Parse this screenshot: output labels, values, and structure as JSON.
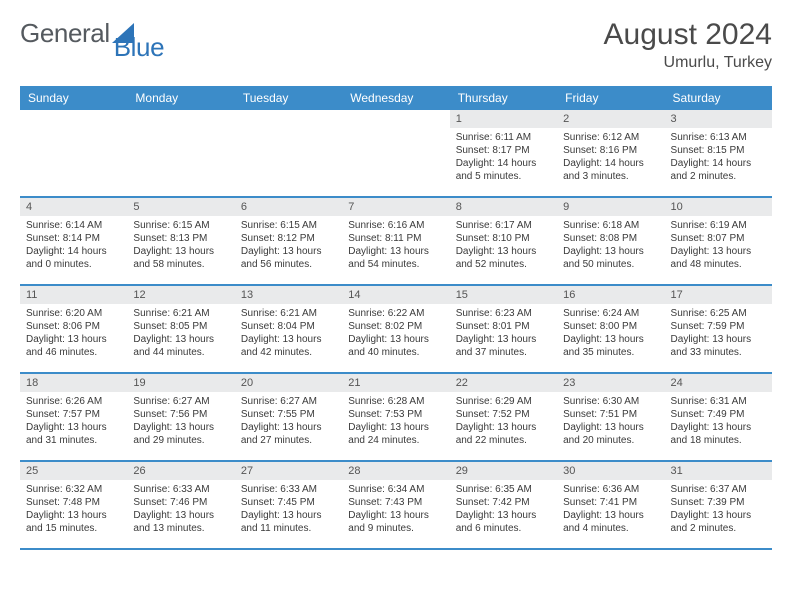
{
  "brand": {
    "word1": "General",
    "word2": "Blue"
  },
  "header": {
    "title": "August 2024",
    "location": "Umurlu, Turkey"
  },
  "calendar": {
    "day_names": [
      "Sunday",
      "Monday",
      "Tuesday",
      "Wednesday",
      "Thursday",
      "Friday",
      "Saturday"
    ],
    "colors": {
      "header_bg": "#3c8cc9",
      "daynum_bg": "#e9eaeb",
      "border": "#3c8cc9"
    },
    "weeks": [
      [
        {
          "empty": true
        },
        {
          "empty": true
        },
        {
          "empty": true
        },
        {
          "empty": true
        },
        {
          "num": "1",
          "sunrise": "Sunrise: 6:11 AM",
          "sunset": "Sunset: 8:17 PM",
          "daylight": "Daylight: 14 hours and 5 minutes."
        },
        {
          "num": "2",
          "sunrise": "Sunrise: 6:12 AM",
          "sunset": "Sunset: 8:16 PM",
          "daylight": "Daylight: 14 hours and 3 minutes."
        },
        {
          "num": "3",
          "sunrise": "Sunrise: 6:13 AM",
          "sunset": "Sunset: 8:15 PM",
          "daylight": "Daylight: 14 hours and 2 minutes."
        }
      ],
      [
        {
          "num": "4",
          "sunrise": "Sunrise: 6:14 AM",
          "sunset": "Sunset: 8:14 PM",
          "daylight": "Daylight: 14 hours and 0 minutes."
        },
        {
          "num": "5",
          "sunrise": "Sunrise: 6:15 AM",
          "sunset": "Sunset: 8:13 PM",
          "daylight": "Daylight: 13 hours and 58 minutes."
        },
        {
          "num": "6",
          "sunrise": "Sunrise: 6:15 AM",
          "sunset": "Sunset: 8:12 PM",
          "daylight": "Daylight: 13 hours and 56 minutes."
        },
        {
          "num": "7",
          "sunrise": "Sunrise: 6:16 AM",
          "sunset": "Sunset: 8:11 PM",
          "daylight": "Daylight: 13 hours and 54 minutes."
        },
        {
          "num": "8",
          "sunrise": "Sunrise: 6:17 AM",
          "sunset": "Sunset: 8:10 PM",
          "daylight": "Daylight: 13 hours and 52 minutes."
        },
        {
          "num": "9",
          "sunrise": "Sunrise: 6:18 AM",
          "sunset": "Sunset: 8:08 PM",
          "daylight": "Daylight: 13 hours and 50 minutes."
        },
        {
          "num": "10",
          "sunrise": "Sunrise: 6:19 AM",
          "sunset": "Sunset: 8:07 PM",
          "daylight": "Daylight: 13 hours and 48 minutes."
        }
      ],
      [
        {
          "num": "11",
          "sunrise": "Sunrise: 6:20 AM",
          "sunset": "Sunset: 8:06 PM",
          "daylight": "Daylight: 13 hours and 46 minutes."
        },
        {
          "num": "12",
          "sunrise": "Sunrise: 6:21 AM",
          "sunset": "Sunset: 8:05 PM",
          "daylight": "Daylight: 13 hours and 44 minutes."
        },
        {
          "num": "13",
          "sunrise": "Sunrise: 6:21 AM",
          "sunset": "Sunset: 8:04 PM",
          "daylight": "Daylight: 13 hours and 42 minutes."
        },
        {
          "num": "14",
          "sunrise": "Sunrise: 6:22 AM",
          "sunset": "Sunset: 8:02 PM",
          "daylight": "Daylight: 13 hours and 40 minutes."
        },
        {
          "num": "15",
          "sunrise": "Sunrise: 6:23 AM",
          "sunset": "Sunset: 8:01 PM",
          "daylight": "Daylight: 13 hours and 37 minutes."
        },
        {
          "num": "16",
          "sunrise": "Sunrise: 6:24 AM",
          "sunset": "Sunset: 8:00 PM",
          "daylight": "Daylight: 13 hours and 35 minutes."
        },
        {
          "num": "17",
          "sunrise": "Sunrise: 6:25 AM",
          "sunset": "Sunset: 7:59 PM",
          "daylight": "Daylight: 13 hours and 33 minutes."
        }
      ],
      [
        {
          "num": "18",
          "sunrise": "Sunrise: 6:26 AM",
          "sunset": "Sunset: 7:57 PM",
          "daylight": "Daylight: 13 hours and 31 minutes."
        },
        {
          "num": "19",
          "sunrise": "Sunrise: 6:27 AM",
          "sunset": "Sunset: 7:56 PM",
          "daylight": "Daylight: 13 hours and 29 minutes."
        },
        {
          "num": "20",
          "sunrise": "Sunrise: 6:27 AM",
          "sunset": "Sunset: 7:55 PM",
          "daylight": "Daylight: 13 hours and 27 minutes."
        },
        {
          "num": "21",
          "sunrise": "Sunrise: 6:28 AM",
          "sunset": "Sunset: 7:53 PM",
          "daylight": "Daylight: 13 hours and 24 minutes."
        },
        {
          "num": "22",
          "sunrise": "Sunrise: 6:29 AM",
          "sunset": "Sunset: 7:52 PM",
          "daylight": "Daylight: 13 hours and 22 minutes."
        },
        {
          "num": "23",
          "sunrise": "Sunrise: 6:30 AM",
          "sunset": "Sunset: 7:51 PM",
          "daylight": "Daylight: 13 hours and 20 minutes."
        },
        {
          "num": "24",
          "sunrise": "Sunrise: 6:31 AM",
          "sunset": "Sunset: 7:49 PM",
          "daylight": "Daylight: 13 hours and 18 minutes."
        }
      ],
      [
        {
          "num": "25",
          "sunrise": "Sunrise: 6:32 AM",
          "sunset": "Sunset: 7:48 PM",
          "daylight": "Daylight: 13 hours and 15 minutes."
        },
        {
          "num": "26",
          "sunrise": "Sunrise: 6:33 AM",
          "sunset": "Sunset: 7:46 PM",
          "daylight": "Daylight: 13 hours and 13 minutes."
        },
        {
          "num": "27",
          "sunrise": "Sunrise: 6:33 AM",
          "sunset": "Sunset: 7:45 PM",
          "daylight": "Daylight: 13 hours and 11 minutes."
        },
        {
          "num": "28",
          "sunrise": "Sunrise: 6:34 AM",
          "sunset": "Sunset: 7:43 PM",
          "daylight": "Daylight: 13 hours and 9 minutes."
        },
        {
          "num": "29",
          "sunrise": "Sunrise: 6:35 AM",
          "sunset": "Sunset: 7:42 PM",
          "daylight": "Daylight: 13 hours and 6 minutes."
        },
        {
          "num": "30",
          "sunrise": "Sunrise: 6:36 AM",
          "sunset": "Sunset: 7:41 PM",
          "daylight": "Daylight: 13 hours and 4 minutes."
        },
        {
          "num": "31",
          "sunrise": "Sunrise: 6:37 AM",
          "sunset": "Sunset: 7:39 PM",
          "daylight": "Daylight: 13 hours and 2 minutes."
        }
      ]
    ]
  }
}
